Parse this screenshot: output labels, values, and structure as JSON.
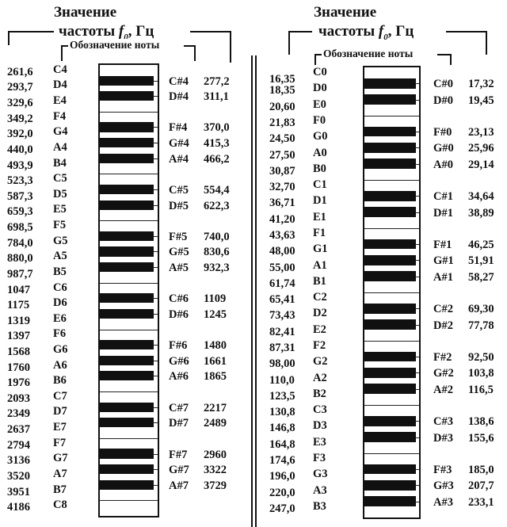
{
  "header": {
    "title_line1": "Значение",
    "title_line2": "частоты",
    "f_symbol": "f",
    "f_sub": "0",
    "unit": ", Гц",
    "subheader": "Обозначение ноты"
  },
  "left": {
    "naturals": [
      {
        "freq": "261,6",
        "note": "C4"
      },
      {
        "freq": "293,7",
        "note": "D4"
      },
      {
        "freq": "329,6",
        "note": "E4"
      },
      {
        "freq": "349,2",
        "note": "F4"
      },
      {
        "freq": "392,0",
        "note": "G4"
      },
      {
        "freq": "440,0",
        "note": "A4"
      },
      {
        "freq": "493,9",
        "note": "B4"
      },
      {
        "freq": "523,3",
        "note": "C5"
      },
      {
        "freq": "587,3",
        "note": "D5"
      },
      {
        "freq": "659,3",
        "note": "E5"
      },
      {
        "freq": "698,5",
        "note": "F5"
      },
      {
        "freq": "784,0",
        "note": "G5"
      },
      {
        "freq": "880,0",
        "note": "A5"
      },
      {
        "freq": "987,7",
        "note": "B5"
      },
      {
        "freq": "1047",
        "note": "C6"
      },
      {
        "freq": "1175",
        "note": "D6"
      },
      {
        "freq": "1319",
        "note": "E6"
      },
      {
        "freq": "1397",
        "note": "F6"
      },
      {
        "freq": "1568",
        "note": "G6"
      },
      {
        "freq": "1760",
        "note": "A6"
      },
      {
        "freq": "1976",
        "note": "B6"
      },
      {
        "freq": "2093",
        "note": "C7"
      },
      {
        "freq": "2349",
        "note": "D7"
      },
      {
        "freq": "2637",
        "note": "E7"
      },
      {
        "freq": "2794",
        "note": "F7"
      },
      {
        "freq": "3136",
        "note": "G7"
      },
      {
        "freq": "3520",
        "note": "A7"
      },
      {
        "freq": "3951",
        "note": "B7"
      },
      {
        "freq": "4186",
        "note": "C8"
      }
    ],
    "sharps": [
      {
        "note": "C#4",
        "freq": "277,2"
      },
      {
        "note": "D#4",
        "freq": "311,1"
      },
      {
        "note": "F#4",
        "freq": "370,0"
      },
      {
        "note": "G#4",
        "freq": "415,3"
      },
      {
        "note": "A#4",
        "freq": "466,2"
      },
      {
        "note": "C#5",
        "freq": "554,4"
      },
      {
        "note": "D#5",
        "freq": "622,3"
      },
      {
        "note": "F#5",
        "freq": "740,0"
      },
      {
        "note": "G#5",
        "freq": "830,6"
      },
      {
        "note": "A#5",
        "freq": "932,3"
      },
      {
        "note": "C#6",
        "freq": "1109"
      },
      {
        "note": "D#6",
        "freq": "1245"
      },
      {
        "note": "F#6",
        "freq": "1480"
      },
      {
        "note": "G#6",
        "freq": "1661"
      },
      {
        "note": "A#6",
        "freq": "1865"
      },
      {
        "note": "C#7",
        "freq": "2217"
      },
      {
        "note": "D#7",
        "freq": "2489"
      },
      {
        "note": "F#7",
        "freq": "2960"
      },
      {
        "note": "G#7",
        "freq": "3322"
      },
      {
        "note": "A#7",
        "freq": "3729"
      }
    ]
  },
  "right": {
    "naturals": [
      {
        "freq": "16,35",
        "note": "C0"
      },
      {
        "freq": "18,35",
        "note": "D0"
      },
      {
        "freq": "20,60",
        "note": "E0"
      },
      {
        "freq": "21,83",
        "note": "F0"
      },
      {
        "freq": "24,50",
        "note": "G0"
      },
      {
        "freq": "27,50",
        "note": "A0"
      },
      {
        "freq": "30,87",
        "note": "B0"
      },
      {
        "freq": "32,70",
        "note": "C1"
      },
      {
        "freq": "36,71",
        "note": "D1"
      },
      {
        "freq": "41,20",
        "note": "E1"
      },
      {
        "freq": "43,63",
        "note": "F1"
      },
      {
        "freq": "48,00",
        "note": "G1"
      },
      {
        "freq": "55,00",
        "note": "A1"
      },
      {
        "freq": "61,74",
        "note": "B1"
      },
      {
        "freq": "65,41",
        "note": "C2"
      },
      {
        "freq": "73,43",
        "note": "D2"
      },
      {
        "freq": "82,41",
        "note": "E2"
      },
      {
        "freq": "87,31",
        "note": "F2"
      },
      {
        "freq": "98,00",
        "note": "G2"
      },
      {
        "freq": "110,0",
        "note": "A2"
      },
      {
        "freq": "123,5",
        "note": "B2"
      },
      {
        "freq": "130,8",
        "note": "C3"
      },
      {
        "freq": "146,8",
        "note": "D3"
      },
      {
        "freq": "164,8",
        "note": "E3"
      },
      {
        "freq": "174,6",
        "note": "F3"
      },
      {
        "freq": "196,0",
        "note": "G3"
      },
      {
        "freq": "220,0",
        "note": "A3"
      },
      {
        "freq": "247,0",
        "note": "B3"
      }
    ],
    "sharps": [
      {
        "note": "C#0",
        "freq": "17,32"
      },
      {
        "note": "D#0",
        "freq": "19,45"
      },
      {
        "note": "F#0",
        "freq": "23,13"
      },
      {
        "note": "G#0",
        "freq": "25,96"
      },
      {
        "note": "A#0",
        "freq": "29,14"
      },
      {
        "note": "C#1",
        "freq": "34,64"
      },
      {
        "note": "D#1",
        "freq": "38,89"
      },
      {
        "note": "F#1",
        "freq": "46,25"
      },
      {
        "note": "G#1",
        "freq": "51,91"
      },
      {
        "note": "A#1",
        "freq": "58,27"
      },
      {
        "note": "C#2",
        "freq": "69,30"
      },
      {
        "note": "D#2",
        "freq": "77,78"
      },
      {
        "note": "F#2",
        "freq": "92,50"
      },
      {
        "note": "G#2",
        "freq": "103,8"
      },
      {
        "note": "A#2",
        "freq": "116,5"
      },
      {
        "note": "C#3",
        "freq": "138,6"
      },
      {
        "note": "D#3",
        "freq": "155,6"
      },
      {
        "note": "F#3",
        "freq": "185,0"
      },
      {
        "note": "G#3",
        "freq": "207,7"
      },
      {
        "note": "A#3",
        "freq": "233,1"
      }
    ]
  }
}
